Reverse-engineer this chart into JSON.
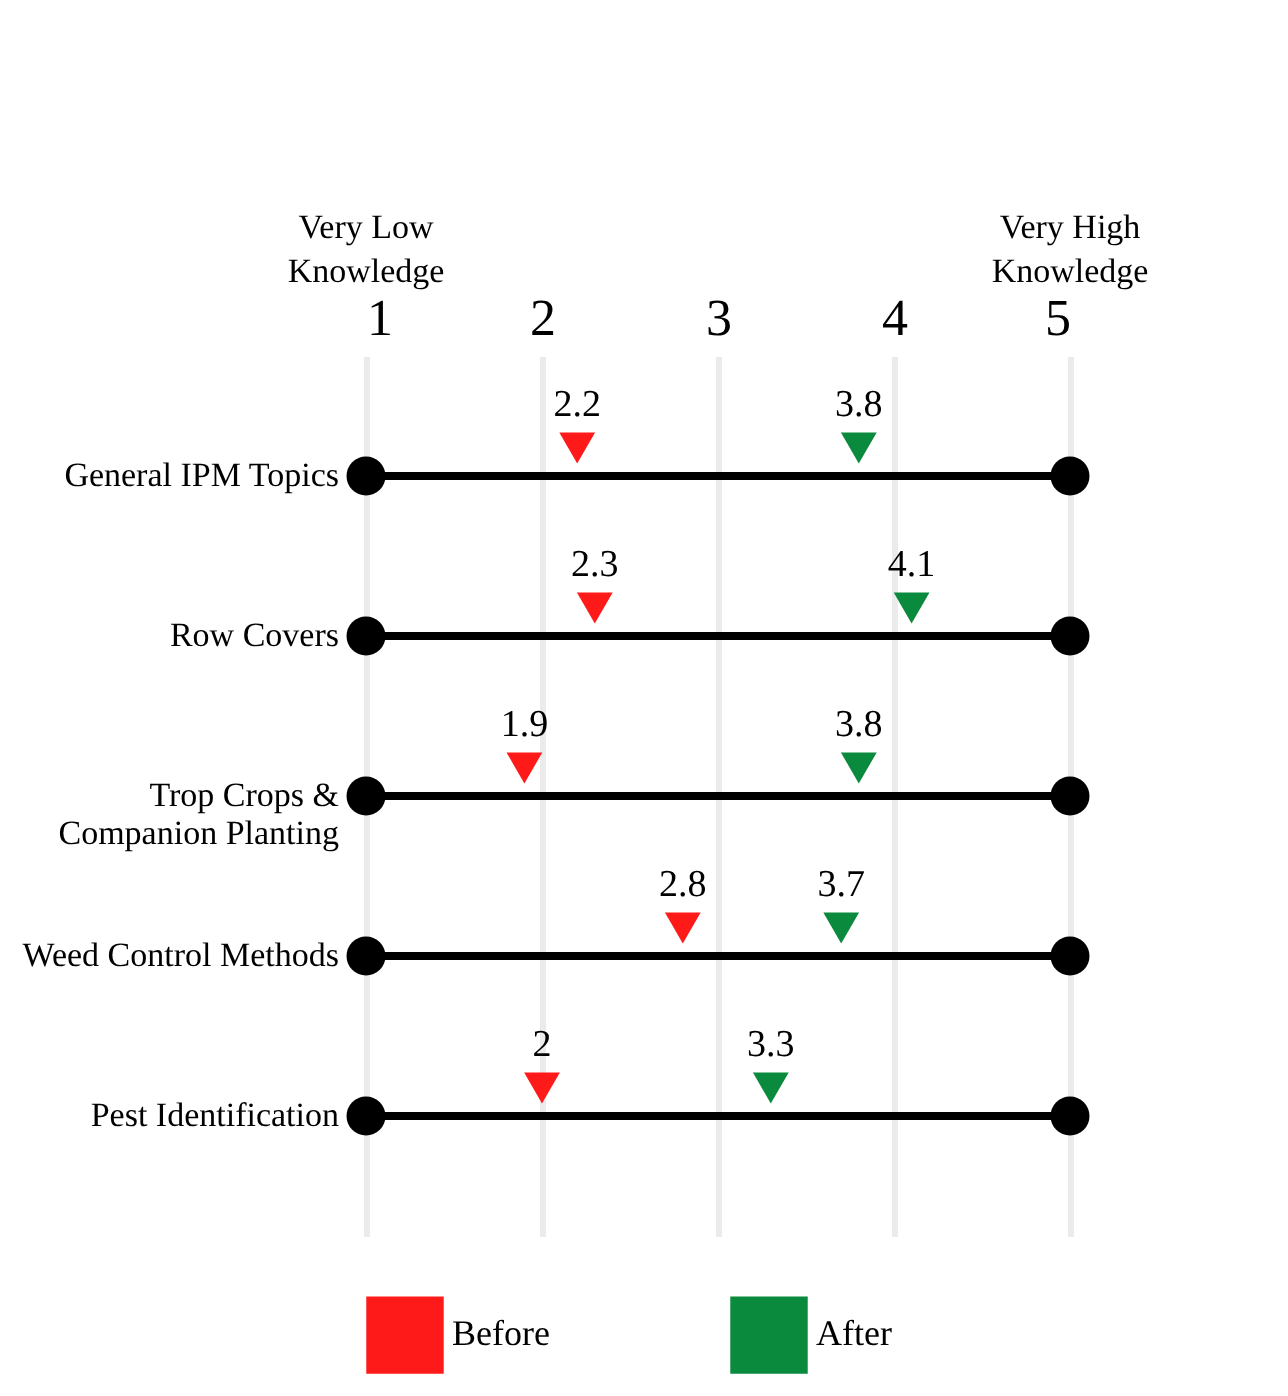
{
  "chart_data": {
    "type": "scatter",
    "orientation": "horizontal",
    "categories": [
      "General IPM Topics",
      "Row Covers",
      "Trop Crops &\nCompanion Planting",
      "Weed Control Methods",
      "Pest Identification"
    ],
    "series": [
      {
        "type": "scatter",
        "marker": "circle",
        "color": "#000000",
        "values": [
          1,
          1,
          1,
          1,
          1
        ]
      },
      {
        "type": "scatter",
        "marker": "circle",
        "color": "#000000",
        "values": [
          5,
          5,
          5,
          5,
          5
        ]
      },
      {
        "name": "Before",
        "color": "#ff1a1a",
        "values": [
          2.2,
          2.3,
          1.9,
          2.8,
          2
        ],
        "data_labels": true
      },
      {
        "name": "After",
        "color": "#0a8a3c",
        "values": [
          3.8,
          4.1,
          3.8,
          3.7,
          3.3
        ],
        "data_labels": true
      }
    ],
    "xlim": [
      1,
      5
    ],
    "xticks": [
      1,
      2,
      3,
      4,
      5
    ],
    "marker": "triangle",
    "grid": true,
    "legend": "bottom",
    "annotations": [
      "Very Low\nKnowledge",
      "Very High\nKnowledge"
    ]
  }
}
